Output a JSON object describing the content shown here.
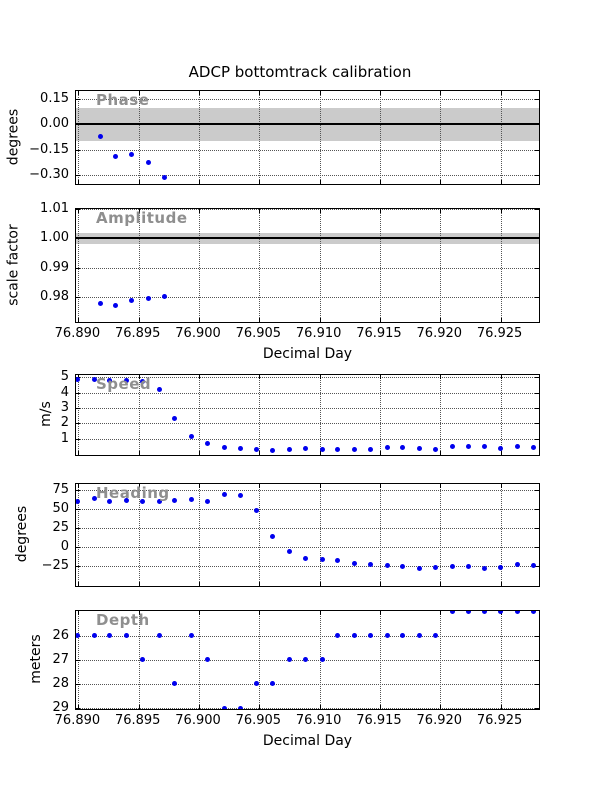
{
  "figure_title": "ADCP bottomtrack calibration",
  "colors": {
    "marker": "#0000ee",
    "band": "#cbcbcb",
    "refline": "#000000",
    "inner_label": "#8f8f8f"
  },
  "x_axis": {
    "label": "Decimal Day",
    "xlim": [
      76.8898,
      76.9281
    ],
    "ticks": [
      76.89,
      76.895,
      76.9,
      76.905,
      76.91,
      76.915,
      76.92,
      76.925
    ],
    "tick_labels": [
      "76.890",
      "76.895",
      "76.900",
      "76.905",
      "76.910",
      "76.915",
      "76.920",
      "76.925"
    ]
  },
  "chart_data": [
    {
      "type": "scatter",
      "title": "Phase",
      "ylabel": "degrees",
      "ylim_top_bottom": [
        0.2,
        -0.35
      ],
      "yticks": [
        0.15,
        0.0,
        -0.15,
        -0.3
      ],
      "ytick_labels": [
        "0.15",
        "0.00",
        "−0.15",
        "−0.30"
      ],
      "band": [
        0.1,
        -0.1
      ],
      "refline": 0.0,
      "grid": true,
      "show_x_tick_labels": false,
      "xlabel": null,
      "x": [
        76.8918,
        76.8931,
        76.8944,
        76.8958,
        76.8971
      ],
      "y": [
        -0.07,
        -0.19,
        -0.18,
        -0.23,
        -0.32
      ]
    },
    {
      "type": "scatter",
      "title": "Amplitude",
      "ylabel": "scale factor",
      "ylim_top_bottom": [
        1.01,
        0.972
      ],
      "yticks": [
        1.01,
        1.0,
        0.99,
        0.98
      ],
      "ytick_labels": [
        "1.01",
        "1.00",
        "0.99",
        "0.98"
      ],
      "band": [
        1.002,
        0.998
      ],
      "refline": 1.0,
      "grid": true,
      "show_x_tick_labels": true,
      "xlabel": "Decimal Day",
      "x": [
        76.8918,
        76.8931,
        76.8944,
        76.8958,
        76.8971
      ],
      "y": [
        0.978,
        0.9773,
        0.9788,
        0.9797,
        0.9803
      ]
    },
    {
      "type": "scatter",
      "title": "Speed",
      "ylabel": "m/s",
      "ylim_top_bottom": [
        5.15,
        0.0
      ],
      "yticks": [
        5,
        4,
        3,
        2,
        1
      ],
      "ytick_labels": [
        "5",
        "4",
        "3",
        "2",
        "1"
      ],
      "band": null,
      "refline": null,
      "grid": true,
      "show_x_tick_labels": false,
      "xlabel": null,
      "x": [
        76.8899,
        76.8913,
        76.8926,
        76.894,
        76.8953,
        76.8967,
        76.898,
        76.8994,
        76.9007,
        76.9021,
        76.9034,
        76.9048,
        76.9061,
        76.9075,
        76.9088,
        76.9102,
        76.9115,
        76.9129,
        76.9142,
        76.9156,
        76.9169,
        76.9183,
        76.9196,
        76.921,
        76.9223,
        76.9237,
        76.925,
        76.9264,
        76.9277
      ],
      "y": [
        4.85,
        4.85,
        4.8,
        4.82,
        4.75,
        4.2,
        2.3,
        1.15,
        0.7,
        0.45,
        0.33,
        0.27,
        0.25,
        0.3,
        0.35,
        0.3,
        0.28,
        0.3,
        0.3,
        0.45,
        0.42,
        0.38,
        0.3,
        0.5,
        0.5,
        0.47,
        0.35,
        0.47,
        0.42
      ]
    },
    {
      "type": "scatter",
      "title": "Heading",
      "ylabel": "degrees",
      "ylim_top_bottom": [
        82.5,
        -50.5
      ],
      "yticks": [
        75,
        50,
        25,
        0,
        -25
      ],
      "ytick_labels": [
        "75",
        "50",
        "25",
        "0",
        "−25"
      ],
      "band": null,
      "refline": null,
      "grid": true,
      "show_x_tick_labels": false,
      "xlabel": null,
      "x": [
        76.8899,
        76.8913,
        76.8926,
        76.894,
        76.8953,
        76.8967,
        76.898,
        76.8994,
        76.9007,
        76.9021,
        76.9034,
        76.9048,
        76.9061,
        76.9075,
        76.9088,
        76.9102,
        76.9115,
        76.9129,
        76.9142,
        76.9156,
        76.9169,
        76.9183,
        76.9196,
        76.921,
        76.9223,
        76.9237,
        76.925,
        76.9264,
        76.9277
      ],
      "y": [
        60,
        63,
        60,
        61,
        60,
        60,
        61,
        62,
        60,
        69,
        68,
        48,
        13,
        -6,
        -15,
        -17,
        -18,
        -22,
        -23,
        -25,
        -26,
        -29,
        -27,
        -26,
        -26,
        -29,
        -27,
        -24,
        -25
      ]
    },
    {
      "type": "scatter",
      "title": "Depth",
      "ylabel": "meters",
      "ylim_top_bottom": [
        24.98,
        29.0
      ],
      "yticks": [
        26,
        27,
        28,
        29
      ],
      "ytick_labels": [
        "26",
        "27",
        "28",
        "29"
      ],
      "band": null,
      "refline": null,
      "grid": true,
      "show_x_tick_labels": true,
      "xlabel": "Decimal Day",
      "x": [
        76.8899,
        76.8913,
        76.8926,
        76.894,
        76.8953,
        76.8967,
        76.898,
        76.8994,
        76.9007,
        76.9021,
        76.9034,
        76.9048,
        76.9061,
        76.9075,
        76.9088,
        76.9102,
        76.9115,
        76.9129,
        76.9142,
        76.9156,
        76.9169,
        76.9183,
        76.9196,
        76.921,
        76.9223,
        76.9237,
        76.925,
        76.9264,
        76.9277
      ],
      "y": [
        26,
        26,
        26,
        26,
        27,
        26,
        28,
        26,
        27,
        29,
        29,
        28,
        28,
        27,
        27,
        27,
        26,
        26,
        26,
        26,
        26,
        26,
        26,
        25,
        25,
        25,
        25,
        25,
        25
      ]
    }
  ]
}
